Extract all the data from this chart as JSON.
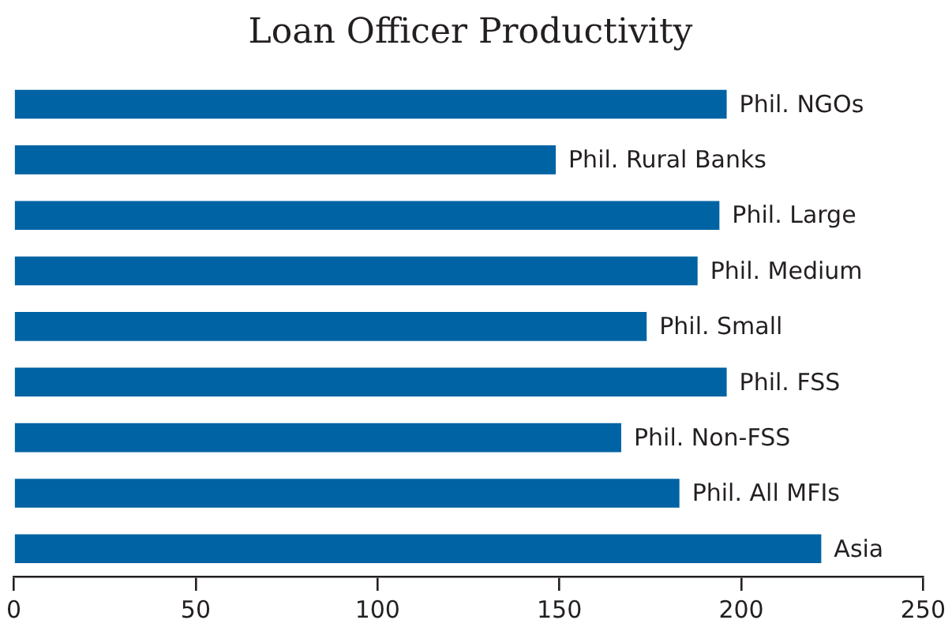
{
  "chart_data": {
    "type": "bar",
    "orientation": "horizontal",
    "title": "Loan Officer Productivity",
    "categories": [
      "Phil. NGOs",
      "Phil. Rural Banks",
      "Phil. Large",
      "Phil. Medium",
      "Phil. Small",
      "Phil. FSS",
      "Phil. Non-FSS",
      "Phil. All MFIs",
      "Asia"
    ],
    "values": [
      196,
      149,
      194,
      188,
      174,
      196,
      167,
      183,
      222
    ],
    "color": "#0063a3",
    "xlim": [
      0,
      250
    ],
    "xticks": [
      0,
      50,
      100,
      150,
      200,
      250
    ],
    "grid": false,
    "legend": false
  }
}
